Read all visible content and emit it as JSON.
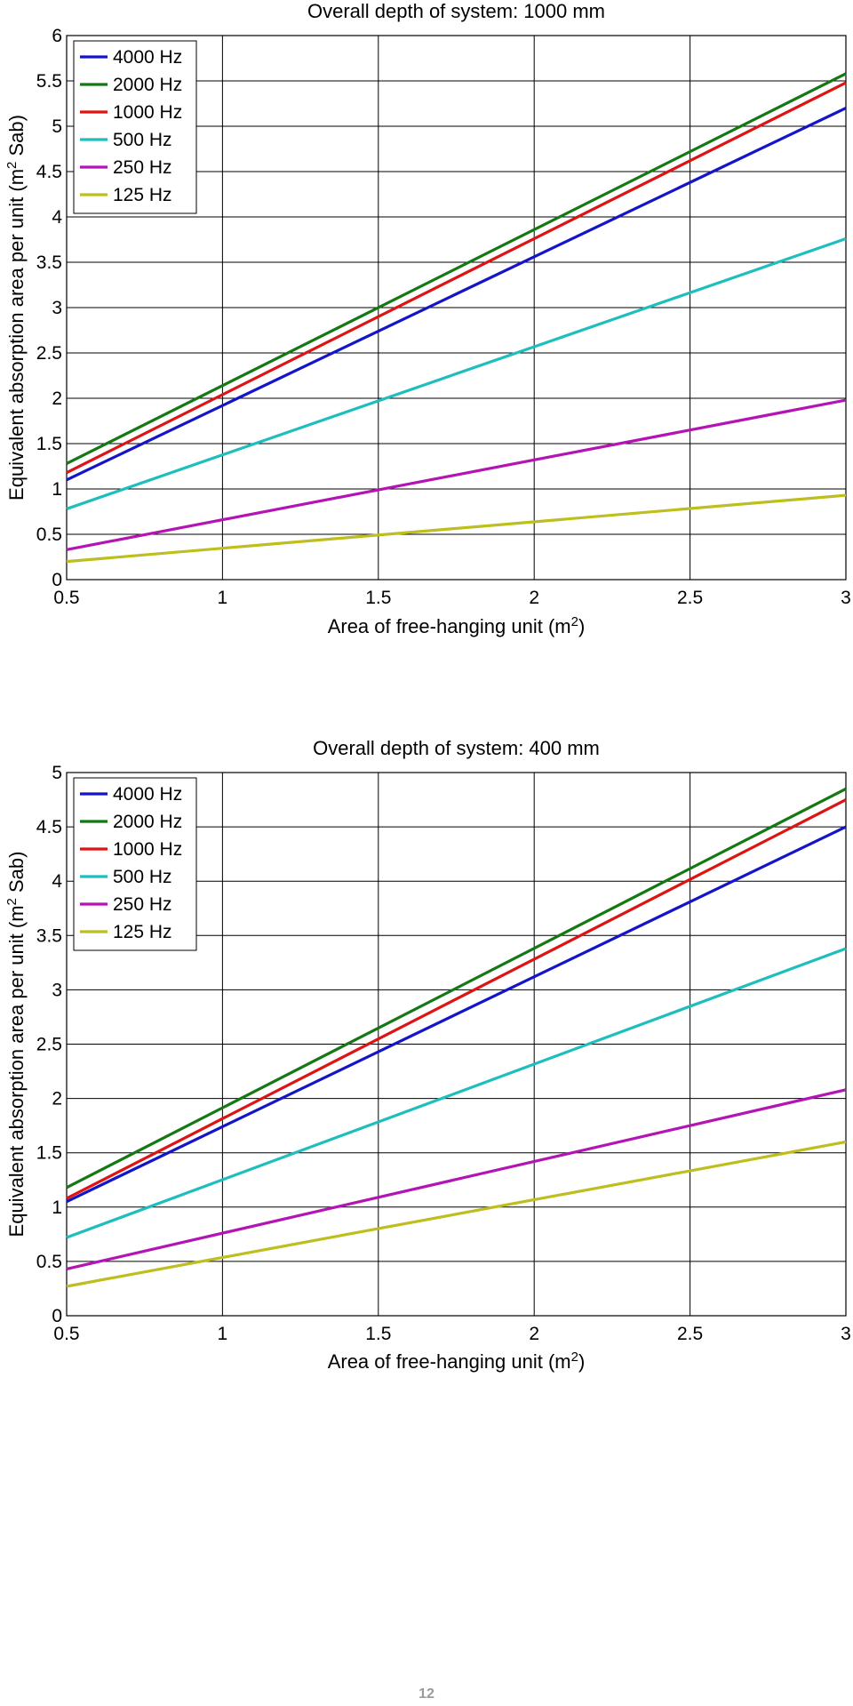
{
  "chart_data": [
    {
      "type": "line",
      "title": "Overall depth of system: 1000 mm",
      "xlabel": "Area of free-hanging unit (m",
      "xlabel_sup": "2",
      "xlabel_end": ")",
      "ylabel": "Equivalent absorption area per unit (m",
      "ylabel_sup": "2",
      "ylabel_end": " Sab)",
      "xlim": [
        0.5,
        3
      ],
      "ylim": [
        0,
        6
      ],
      "xticks": [
        0.5,
        1,
        1.5,
        2,
        2.5,
        3
      ],
      "xtick_labels": [
        "0.5",
        "1",
        "1.5",
        "2",
        "2.5",
        "3"
      ],
      "yticks": [
        0,
        0.5,
        1,
        1.5,
        2,
        2.5,
        3,
        3.5,
        4,
        4.5,
        5,
        5.5,
        6
      ],
      "ytick_labels": [
        "0",
        "0.5",
        "1",
        "1.5",
        "2",
        "2.5",
        "3",
        "3.5",
        "4",
        "4.5",
        "5",
        "5.5",
        "6"
      ],
      "grid": true,
      "legend_position": "top-left",
      "x": [
        0.5,
        3
      ],
      "series": [
        {
          "name": "4000 Hz",
          "color": "#1414c8",
          "values": [
            1.1,
            5.2
          ]
        },
        {
          "name": "2000 Hz",
          "color": "#147814",
          "values": [
            1.28,
            5.58
          ]
        },
        {
          "name": "1000 Hz",
          "color": "#dc1414",
          "values": [
            1.18,
            5.48
          ]
        },
        {
          "name": "500 Hz",
          "color": "#1ebebe",
          "values": [
            0.78,
            3.76
          ]
        },
        {
          "name": "250 Hz",
          "color": "#b414b4",
          "values": [
            0.33,
            1.98
          ]
        },
        {
          "name": "125 Hz",
          "color": "#bebe1e",
          "values": [
            0.2,
            0.93
          ]
        }
      ]
    },
    {
      "type": "line",
      "title": "Overall depth of system: 400 mm",
      "xlabel": "Area of free-hanging unit (m",
      "xlabel_sup": "2",
      "xlabel_end": ")",
      "ylabel": "Equivalent absorption area per unit (m",
      "ylabel_sup": "2",
      "ylabel_end": " Sab)",
      "xlim": [
        0.5,
        3
      ],
      "ylim": [
        0,
        5
      ],
      "xticks": [
        0.5,
        1,
        1.5,
        2,
        2.5,
        3
      ],
      "xtick_labels": [
        "0.5",
        "1",
        "1.5",
        "2",
        "2.5",
        "3"
      ],
      "yticks": [
        0,
        0.5,
        1,
        1.5,
        2,
        2.5,
        3,
        3.5,
        4,
        4.5,
        5
      ],
      "ytick_labels": [
        "0",
        "0.5",
        "1",
        "1.5",
        "2",
        "2.5",
        "3",
        "3.5",
        "4",
        "4.5",
        "5"
      ],
      "grid": true,
      "legend_position": "top-left",
      "x": [
        0.5,
        3
      ],
      "series": [
        {
          "name": "4000 Hz",
          "color": "#1414c8",
          "values": [
            1.05,
            4.5
          ]
        },
        {
          "name": "2000 Hz",
          "color": "#147814",
          "values": [
            1.18,
            4.85
          ]
        },
        {
          "name": "1000 Hz",
          "color": "#dc1414",
          "values": [
            1.08,
            4.75
          ]
        },
        {
          "name": "500 Hz",
          "color": "#1ebebe",
          "values": [
            0.72,
            3.38
          ]
        },
        {
          "name": "250 Hz",
          "color": "#b414b4",
          "values": [
            0.43,
            2.08
          ]
        },
        {
          "name": "125 Hz",
          "color": "#bebe1e",
          "values": [
            0.27,
            1.6
          ]
        }
      ]
    }
  ],
  "page_number": "12"
}
